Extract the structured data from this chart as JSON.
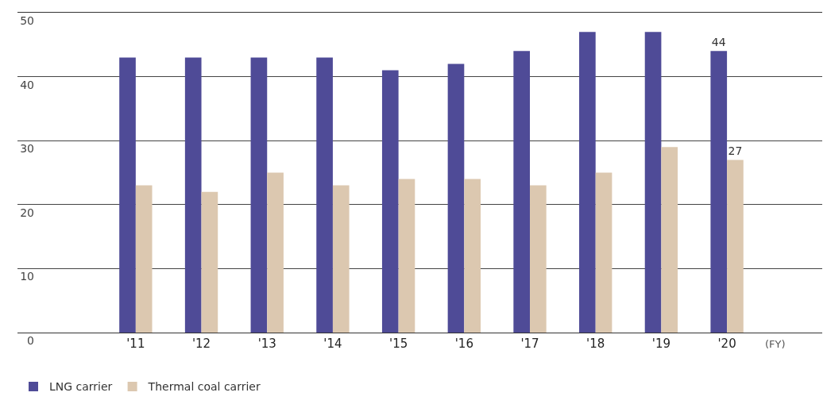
{
  "chart_data": {
    "type": "bar",
    "categories": [
      "'11",
      "'12",
      "'13",
      "'14",
      "'15",
      "'16",
      "'17",
      "'18",
      "'19",
      "'20"
    ],
    "xlabel": "(FY)",
    "series": [
      {
        "name": "LNG carrier",
        "color": "#4f4b97",
        "values": [
          43,
          43,
          43,
          43,
          41,
          42,
          44,
          47,
          47,
          44
        ],
        "value_labels": [
          null,
          null,
          null,
          null,
          null,
          null,
          null,
          null,
          null,
          "44"
        ]
      },
      {
        "name": "Thermal coal carrier",
        "color": "#dcc8b0",
        "values": [
          23,
          22,
          25,
          23,
          24,
          24,
          23,
          25,
          29,
          27
        ],
        "value_labels": [
          null,
          null,
          null,
          null,
          null,
          null,
          null,
          null,
          null,
          "27"
        ]
      }
    ],
    "ylim": [
      0,
      50
    ],
    "yticks": [
      0,
      10,
      20,
      30,
      40,
      50
    ],
    "grid": "y",
    "legend": "bottom left"
  }
}
